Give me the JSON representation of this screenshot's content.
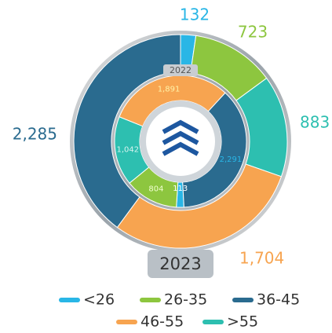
{
  "chart_data": {
    "type": "nested-donut",
    "categories": [
      "2022",
      "2023"
    ],
    "series": [
      {
        "name": "<26",
        "color": "#29b6e6",
        "values": [
          113,
          132
        ]
      },
      {
        "name": "26-35",
        "color": "#8dc63f",
        "values": [
          804,
          723
        ]
      },
      {
        "name": "36-45",
        "color": "#2a6b8f",
        "values": [
          2291,
          2285
        ],
        "value_labels": [
          "2,291",
          "2,285"
        ]
      },
      {
        "name": "46-55",
        "color": "#f7a450",
        "values": [
          1891,
          1704
        ],
        "value_labels": [
          "1,891",
          "1,704"
        ]
      },
      {
        "name": ">55",
        "color": "#2dbfb0",
        "values": [
          1042,
          883
        ],
        "value_labels": [
          "1,042"
        ]
      }
    ]
  }
}
